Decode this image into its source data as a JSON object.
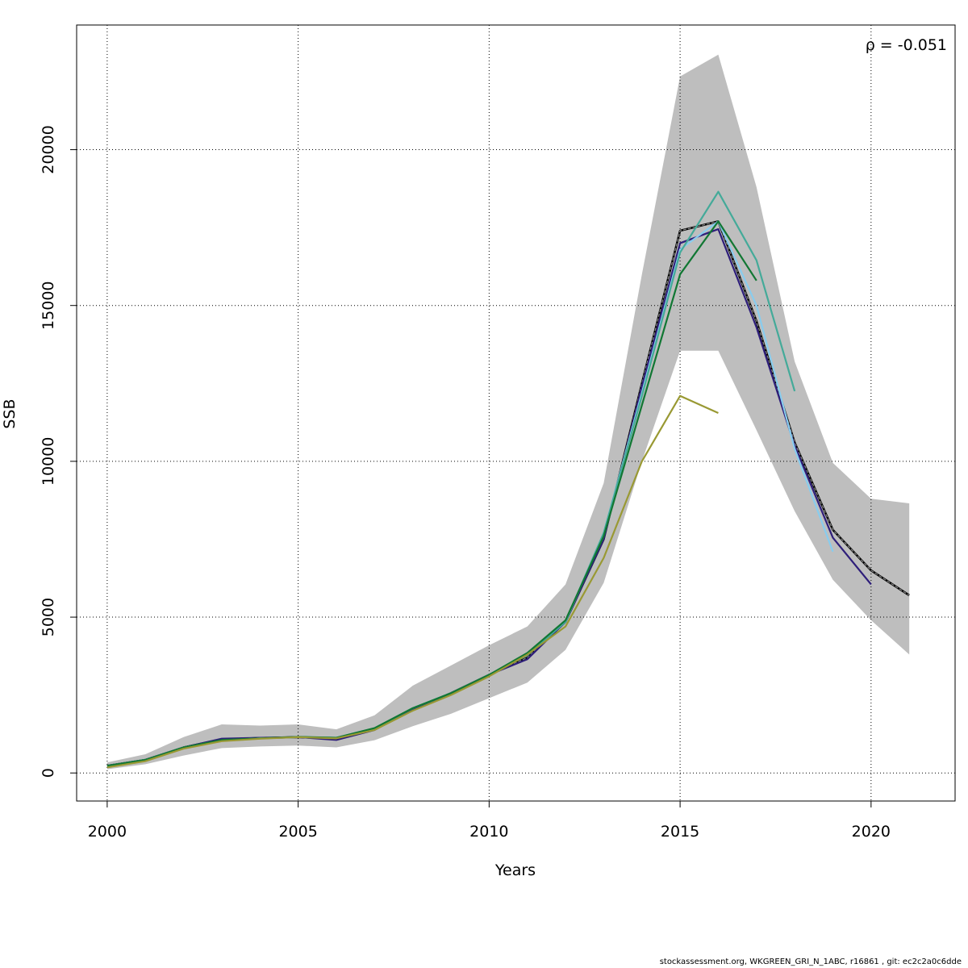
{
  "chart_data": {
    "type": "line",
    "title": "",
    "xlabel": "Years",
    "ylabel": "SSB",
    "xlim": [
      1999.2,
      2022.2
    ],
    "ylim": [
      -900,
      24000
    ],
    "xticks": [
      2000,
      2005,
      2010,
      2015,
      2020
    ],
    "yticks": [
      0,
      5000,
      10000,
      15000,
      20000
    ],
    "xtick_labels": [
      "2000",
      "2005",
      "2010",
      "2015",
      "2020"
    ],
    "ytick_labels": [
      "0",
      "5000",
      "10000",
      "15000",
      "20000"
    ],
    "grid": true,
    "annotation": "ρ = -0.051",
    "confidence_band": {
      "color": "#bebebe",
      "x": [
        2000,
        2001,
        2002,
        2003,
        2004,
        2005,
        2006,
        2007,
        2008,
        2009,
        2010,
        2011,
        2012,
        2013,
        2014,
        2015,
        2016,
        2017,
        2018,
        2019,
        2020,
        2021
      ],
      "lower": [
        120,
        280,
        560,
        800,
        850,
        880,
        820,
        1050,
        1500,
        1900,
        2400,
        2900,
        3950,
        6100,
        10000,
        13550,
        13550,
        11000,
        8400,
        6200,
        4900,
        3800
      ],
      "upper": [
        340,
        600,
        1150,
        1560,
        1520,
        1560,
        1400,
        1850,
        2800,
        3450,
        4100,
        4700,
        6050,
        9300,
        16000,
        22350,
        23050,
        18800,
        13200,
        9950,
        8800,
        8650
      ]
    },
    "series": [
      {
        "color": "#333333",
        "dashed": true,
        "x": [
          2000,
          2001,
          2002,
          2003,
          2004,
          2005,
          2006,
          2007,
          2008,
          2009,
          2010,
          2011,
          2012,
          2013,
          2014,
          2015,
          2016,
          2017,
          2018,
          2019,
          2020,
          2021
        ],
        "values": [
          230,
          420,
          820,
          1080,
          1120,
          1150,
          1100,
          1400,
          2050,
          2560,
          3150,
          3700,
          4850,
          7500,
          12500,
          17400,
          17700,
          14500,
          10600,
          7800,
          6500,
          5700
        ]
      },
      {
        "color": "#2e1e7a",
        "dashed": false,
        "x": [
          2000,
          2001,
          2002,
          2003,
          2004,
          2005,
          2006,
          2007,
          2008,
          2009,
          2010,
          2011,
          2012,
          2013,
          2014,
          2015,
          2016,
          2017,
          2018,
          2019,
          2020
        ],
        "values": [
          230,
          420,
          820,
          1100,
          1130,
          1150,
          1060,
          1380,
          2050,
          2560,
          3150,
          3650,
          4850,
          7500,
          12400,
          17000,
          17450,
          14300,
          10500,
          7550,
          6050
        ]
      },
      {
        "color": "#88ccee",
        "dashed": false,
        "x": [
          2000,
          2001,
          2002,
          2003,
          2004,
          2005,
          2006,
          2007,
          2008,
          2009,
          2010,
          2011,
          2012,
          2013,
          2014,
          2015,
          2016,
          2017,
          2018,
          2019
        ],
        "values": [
          230,
          420,
          820,
          1050,
          1110,
          1150,
          1130,
          1430,
          2080,
          2560,
          3150,
          3780,
          4850,
          7700,
          12200,
          16800,
          17700,
          15000,
          10400,
          7100
        ]
      },
      {
        "color": "#44aa99",
        "dashed": false,
        "x": [
          2000,
          2001,
          2002,
          2003,
          2004,
          2005,
          2006,
          2007,
          2008,
          2009,
          2010,
          2011,
          2012,
          2013,
          2014,
          2015,
          2016,
          2017,
          2018
        ],
        "values": [
          230,
          420,
          820,
          1050,
          1110,
          1150,
          1130,
          1430,
          2080,
          2560,
          3150,
          3780,
          4850,
          7700,
          12100,
          16700,
          18650,
          16450,
          12250
        ]
      },
      {
        "color": "#117733",
        "dashed": false,
        "x": [
          2000,
          2001,
          2002,
          2003,
          2004,
          2005,
          2006,
          2007,
          2008,
          2009,
          2010,
          2011,
          2012,
          2013,
          2014,
          2015,
          2016,
          2017
        ],
        "values": [
          230,
          420,
          820,
          1060,
          1110,
          1160,
          1130,
          1440,
          2080,
          2560,
          3150,
          3850,
          4900,
          7600,
          11800,
          16000,
          17700,
          15800
        ]
      },
      {
        "color": "#999933",
        "dashed": false,
        "x": [
          2000,
          2001,
          2002,
          2003,
          2004,
          2005,
          2006,
          2007,
          2008,
          2009,
          2010,
          2011,
          2012,
          2013,
          2014,
          2015,
          2016
        ],
        "values": [
          180,
          380,
          780,
          1020,
          1100,
          1150,
          1110,
          1380,
          2000,
          2500,
          3100,
          3800,
          4700,
          6900,
          10000,
          12100,
          11550
        ]
      }
    ]
  },
  "footer": "stockassessment.org, WKGREEN_GRI_N_1ABC, r16861 , git: ec2c2a0c6dde"
}
